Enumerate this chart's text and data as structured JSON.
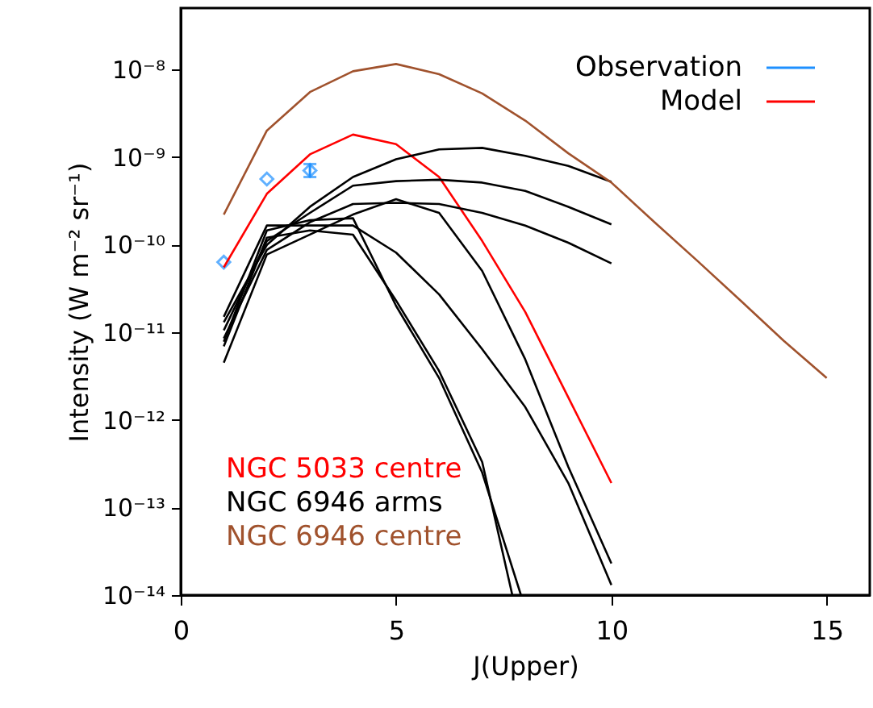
{
  "chart_data": {
    "type": "line",
    "xlabel": "J(Upper)",
    "ylabel": "Intensity (W m⁻² sr⁻¹)",
    "x": [
      1,
      2,
      3,
      4,
      5,
      6,
      7,
      8,
      9,
      10
    ],
    "xlim": [
      0,
      16
    ],
    "xticks": [
      0,
      5,
      10,
      15
    ],
    "ylim": [
      1e-14,
      5e-08
    ],
    "log": "y",
    "yticks": [
      {
        "value": 1e-14,
        "label": "10⁻¹⁴"
      },
      {
        "value": 1e-13,
        "label": "10⁻¹³"
      },
      {
        "value": 1e-12,
        "label": "10⁻¹²"
      },
      {
        "value": 1e-11,
        "label": "10⁻¹¹"
      },
      {
        "value": 1e-10,
        "label": "10⁻¹⁰"
      },
      {
        "value": 1e-09,
        "label": "10⁻⁹"
      },
      {
        "value": 1e-08,
        "label": "10⁻⁸"
      }
    ],
    "annotations": [
      "Observation",
      "Model"
    ],
    "series": [
      {
        "type": "scatter",
        "color": "#1e90ff",
        "marker": "diamond",
        "x": [
          1,
          2,
          3
        ],
        "values": [
          6.3e-11,
          5.6e-10,
          7e-10
        ],
        "errors": [
          null,
          null,
          [
            5.9e-10,
            8.3e-10
          ]
        ]
      },
      {
        "name": "NGC 5033 centre",
        "color": "#ff0000",
        "values": [
          5.5e-11,
          3.8e-10,
          1.07e-09,
          1.8e-09,
          1.4e-09,
          5.9e-10,
          1.1e-10,
          1.7e-11,
          1.8e-12,
          1.9e-13
        ]
      },
      {
        "name": "NGC 6946 arms",
        "color": "#000000",
        "values": [
          1.3e-11,
          9.9e-11,
          2.7e-10,
          5.9e-10,
          9.4e-10,
          1.22e-09,
          1.27e-09,
          1.03e-09,
          7.9e-10,
          5.2e-10
        ]
      },
      {
        "name": "NGC 6946 centre",
        "color": "#a0522d",
        "x": [
          1,
          2,
          3,
          4,
          5,
          6,
          7,
          8,
          9,
          10,
          11,
          12,
          13,
          14,
          15
        ],
        "values": [
          2.2e-10,
          2e-09,
          5.5e-09,
          9.5e-09,
          1.15e-08,
          8.8e-09,
          5.3e-09,
          2.6e-09,
          1.1e-09,
          5.1e-10,
          1.8e-10,
          6.5e-11,
          2.3e-11,
          8e-12,
          3e-12
        ]
      },
      {
        "color": "#000000",
        "values": [
          1.05e-11,
          1.1e-10,
          2.3e-10,
          4.7e-10,
          5.3e-10,
          5.5e-10,
          5.1e-10,
          4.1e-10,
          2.7e-10,
          1.7e-10
        ]
      },
      {
        "color": "#000000",
        "values": [
          8.5e-12,
          8.7e-11,
          1.8e-10,
          2.9e-10,
          3e-10,
          2.9e-10,
          2.3e-10,
          1.65e-10,
          1.05e-10,
          6.1e-11
        ]
      },
      {
        "color": "#000000",
        "values": [
          4.5e-12,
          7.7e-11,
          1.3e-10,
          2.2e-10,
          3.3e-10,
          2.3e-10,
          5e-11,
          4.9e-12,
          2.9e-13,
          2.3e-14
        ]
      },
      {
        "color": "#000000",
        "values": [
          1.5e-11,
          1.65e-10,
          1.65e-10,
          1.65e-10,
          8.1e-11,
          2.7e-11,
          6.4e-12,
          1.4e-12,
          1.9e-13,
          1.3e-14
        ]
      },
      {
        "color": "#000000",
        "x": [
          1,
          2,
          3,
          4,
          5,
          6,
          7,
          7.7
        ],
        "values": [
          6.9e-12,
          1.2e-10,
          1.45e-10,
          1.3e-10,
          2.3e-11,
          3.6e-12,
          3.3e-13,
          1e-14
        ]
      },
      {
        "color": "#000000",
        "x": [
          1,
          2,
          3,
          4,
          5,
          6,
          7,
          7.9
        ],
        "values": [
          7.8e-12,
          1.45e-10,
          1.9e-10,
          2e-10,
          2e-11,
          3e-12,
          2.5e-13,
          1e-14
        ]
      }
    ]
  }
}
